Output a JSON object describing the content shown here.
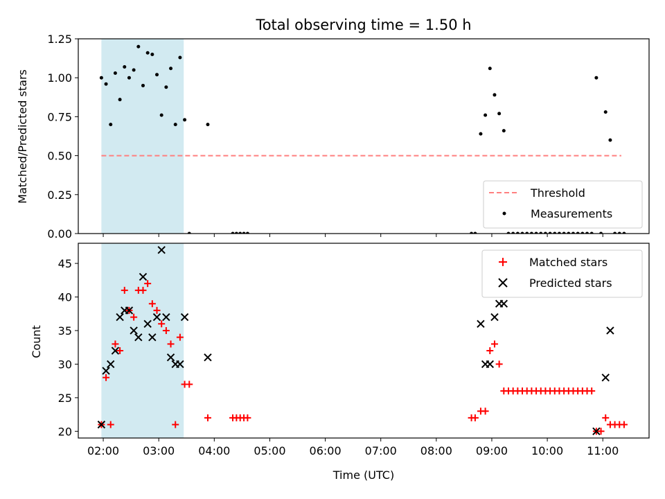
{
  "chart_data": [
    {
      "type": "scatter",
      "title": "Total observing time = 1.50 h",
      "ylabel": "Matched/Predicted stars",
      "ylim": [
        0,
        1.25
      ],
      "yticks": [
        "0.00",
        "0.25",
        "0.50",
        "0.75",
        "1.00",
        "1.25"
      ],
      "xlim": [
        "01:33",
        "11:50"
      ],
      "xticks": [
        "02:00",
        "03:00",
        "04:00",
        "05:00",
        "06:00",
        "07:00",
        "08:00",
        "09:00",
        "10:00",
        "11:00"
      ],
      "shaded_region": {
        "x": [
          "01:58",
          "03:27"
        ],
        "color": "#add8e6"
      },
      "threshold": {
        "name": "Threshold",
        "y": 0.5,
        "x": [
          "01:58",
          "11:20"
        ],
        "color": "#ff7f7f"
      },
      "series": [
        {
          "name": "Measurements",
          "color": "#000000",
          "marker": "point",
          "points": [
            [
              "01:58",
              1.0
            ],
            [
              "02:03",
              0.96
            ],
            [
              "02:08",
              0.7
            ],
            [
              "02:13",
              1.03
            ],
            [
              "02:18",
              0.86
            ],
            [
              "02:23",
              1.07
            ],
            [
              "02:28",
              1.0
            ],
            [
              "02:33",
              1.05
            ],
            [
              "02:38",
              1.2
            ],
            [
              "02:43",
              0.95
            ],
            [
              "02:48",
              1.16
            ],
            [
              "02:53",
              1.15
            ],
            [
              "02:58",
              1.02
            ],
            [
              "03:03",
              0.76
            ],
            [
              "03:08",
              0.94
            ],
            [
              "03:13",
              1.06
            ],
            [
              "03:18",
              0.7
            ],
            [
              "03:23",
              1.13
            ],
            [
              "03:28",
              0.73
            ],
            [
              "03:33",
              0.0
            ],
            [
              "03:53",
              0.7
            ],
            [
              "04:20",
              0.0
            ],
            [
              "04:24",
              0.0
            ],
            [
              "04:28",
              0.0
            ],
            [
              "04:32",
              0.0
            ],
            [
              "04:36",
              0.0
            ],
            [
              "08:38",
              0.0
            ],
            [
              "08:42",
              0.0
            ],
            [
              "08:48",
              0.64
            ],
            [
              "08:53",
              0.76
            ],
            [
              "08:58",
              1.06
            ],
            [
              "09:03",
              0.89
            ],
            [
              "09:08",
              0.77
            ],
            [
              "09:13",
              0.66
            ],
            [
              "09:18",
              0.0
            ],
            [
              "09:23",
              0.0
            ],
            [
              "09:28",
              0.0
            ],
            [
              "09:33",
              0.0
            ],
            [
              "09:38",
              0.0
            ],
            [
              "09:43",
              0.0
            ],
            [
              "09:48",
              0.0
            ],
            [
              "09:53",
              0.0
            ],
            [
              "09:58",
              0.0
            ],
            [
              "10:03",
              0.0
            ],
            [
              "10:08",
              0.0
            ],
            [
              "10:13",
              0.0
            ],
            [
              "10:18",
              0.0
            ],
            [
              "10:23",
              0.0
            ],
            [
              "10:28",
              0.0
            ],
            [
              "10:33",
              0.0
            ],
            [
              "10:38",
              0.0
            ],
            [
              "10:43",
              0.0
            ],
            [
              "10:48",
              0.0
            ],
            [
              "10:53",
              1.0
            ],
            [
              "10:58",
              0.0
            ],
            [
              "11:03",
              0.78
            ],
            [
              "11:08",
              0.6
            ],
            [
              "11:13",
              0.0
            ],
            [
              "11:18",
              0.0
            ],
            [
              "11:23",
              0.0
            ]
          ]
        }
      ],
      "legend": {
        "placement": "bottom-right",
        "entries": [
          "Threshold",
          "Measurements"
        ]
      }
    },
    {
      "type": "scatter",
      "title": "",
      "xlabel": "Time (UTC)",
      "ylabel": "Count",
      "ylim": [
        19,
        48
      ],
      "yticks": [
        "20",
        "25",
        "30",
        "35",
        "40",
        "45"
      ],
      "xlim": [
        "01:33",
        "11:50"
      ],
      "xticks": [
        "02:00",
        "03:00",
        "04:00",
        "05:00",
        "06:00",
        "07:00",
        "08:00",
        "09:00",
        "10:00",
        "11:00"
      ],
      "shaded_region": {
        "x": [
          "01:58",
          "03:27"
        ],
        "color": "#add8e6"
      },
      "series": [
        {
          "name": "Matched stars",
          "color": "#ff0000",
          "marker": "plus",
          "points": [
            [
              "01:58",
              21
            ],
            [
              "02:03",
              28
            ],
            [
              "02:08",
              21
            ],
            [
              "02:13",
              33
            ],
            [
              "02:18",
              32
            ],
            [
              "02:23",
              41
            ],
            [
              "02:28",
              38
            ],
            [
              "02:33",
              37
            ],
            [
              "02:38",
              41
            ],
            [
              "02:43",
              41
            ],
            [
              "02:48",
              42
            ],
            [
              "02:53",
              39
            ],
            [
              "02:58",
              38
            ],
            [
              "03:03",
              36
            ],
            [
              "03:08",
              35
            ],
            [
              "03:13",
              33
            ],
            [
              "03:18",
              21
            ],
            [
              "03:23",
              34
            ],
            [
              "03:28",
              27
            ],
            [
              "03:33",
              27
            ],
            [
              "03:53",
              22
            ],
            [
              "04:20",
              22
            ],
            [
              "04:24",
              22
            ],
            [
              "04:28",
              22
            ],
            [
              "04:32",
              22
            ],
            [
              "04:36",
              22
            ],
            [
              "08:38",
              22
            ],
            [
              "08:42",
              22
            ],
            [
              "08:48",
              23
            ],
            [
              "08:53",
              23
            ],
            [
              "08:58",
              32
            ],
            [
              "09:03",
              33
            ],
            [
              "09:08",
              30
            ],
            [
              "09:13",
              26
            ],
            [
              "09:18",
              26
            ],
            [
              "09:23",
              26
            ],
            [
              "09:28",
              26
            ],
            [
              "09:33",
              26
            ],
            [
              "09:38",
              26
            ],
            [
              "09:43",
              26
            ],
            [
              "09:48",
              26
            ],
            [
              "09:53",
              26
            ],
            [
              "09:58",
              26
            ],
            [
              "10:03",
              26
            ],
            [
              "10:08",
              26
            ],
            [
              "10:13",
              26
            ],
            [
              "10:18",
              26
            ],
            [
              "10:23",
              26
            ],
            [
              "10:28",
              26
            ],
            [
              "10:33",
              26
            ],
            [
              "10:38",
              26
            ],
            [
              "10:43",
              26
            ],
            [
              "10:48",
              26
            ],
            [
              "10:53",
              20
            ],
            [
              "10:58",
              20
            ],
            [
              "11:03",
              22
            ],
            [
              "11:08",
              21
            ],
            [
              "11:13",
              21
            ],
            [
              "11:18",
              21
            ],
            [
              "11:23",
              21
            ]
          ]
        },
        {
          "name": "Predicted stars",
          "color": "#000000",
          "marker": "x",
          "points": [
            [
              "01:58",
              21
            ],
            [
              "02:03",
              29
            ],
            [
              "02:08",
              30
            ],
            [
              "02:13",
              32
            ],
            [
              "02:18",
              37
            ],
            [
              "02:23",
              38
            ],
            [
              "02:28",
              38
            ],
            [
              "02:33",
              35
            ],
            [
              "02:38",
              34
            ],
            [
              "02:43",
              43
            ],
            [
              "02:48",
              36
            ],
            [
              "02:53",
              34
            ],
            [
              "02:58",
              37
            ],
            [
              "03:03",
              47
            ],
            [
              "03:08",
              37
            ],
            [
              "03:13",
              31
            ],
            [
              "03:18",
              30
            ],
            [
              "03:23",
              30
            ],
            [
              "03:28",
              37
            ],
            [
              "03:53",
              31
            ],
            [
              "08:48",
              36
            ],
            [
              "08:53",
              30
            ],
            [
              "08:58",
              30
            ],
            [
              "09:03",
              37
            ],
            [
              "09:08",
              39
            ],
            [
              "09:13",
              39
            ],
            [
              "10:53",
              20
            ],
            [
              "11:03",
              28
            ],
            [
              "11:08",
              35
            ]
          ]
        }
      ],
      "legend": {
        "placement": "top-right",
        "entries": [
          "Matched stars",
          "Predicted stars"
        ]
      }
    }
  ]
}
